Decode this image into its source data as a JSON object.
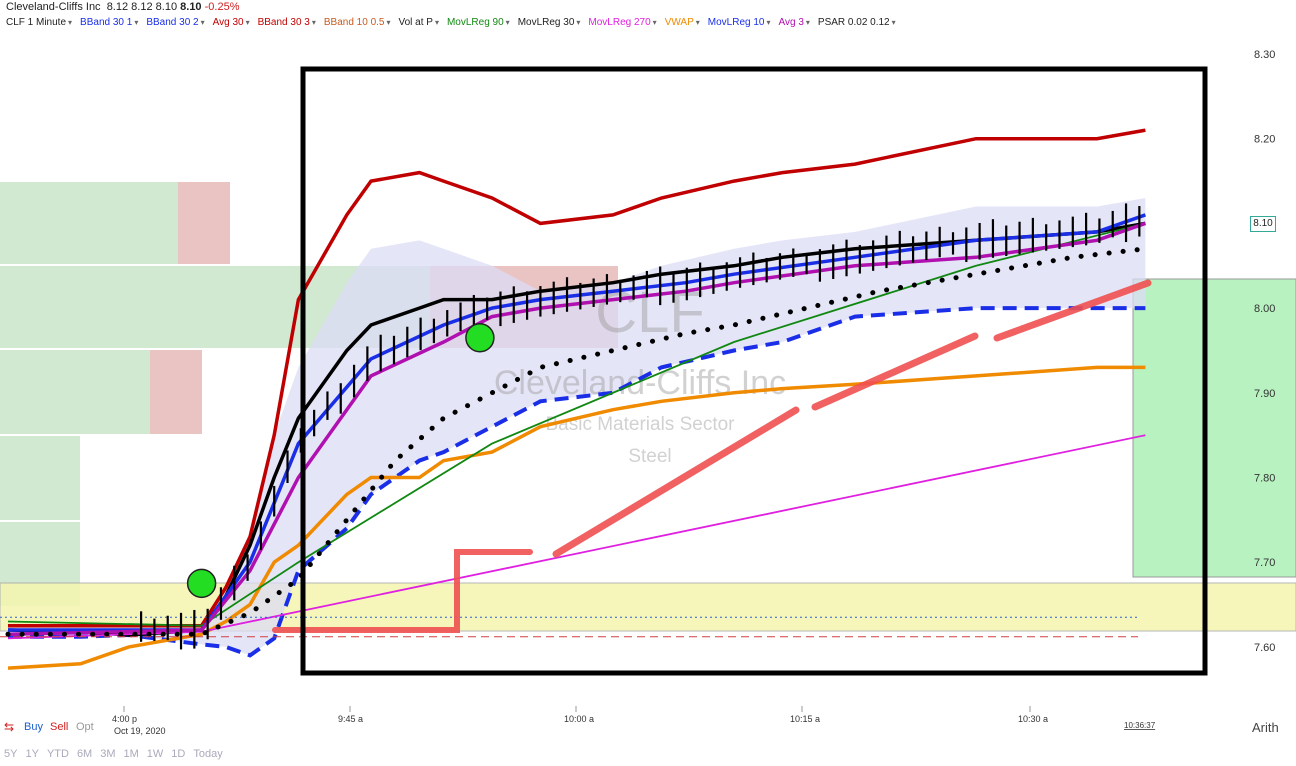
{
  "header": {
    "company": "Cleveland-Cliffs Inc",
    "open": "8.12",
    "high": "8.12",
    "low": "8.10",
    "last": "8.10",
    "change": "-0.25%",
    "indicators": [
      {
        "label": "CLF 1 Minute",
        "color": "#222222"
      },
      {
        "label": "BBand 30 1",
        "color": "#1a2ee8"
      },
      {
        "label": "BBand 30 2",
        "color": "#1a2ee8"
      },
      {
        "label": "Avg 30",
        "color": "#c00000"
      },
      {
        "label": "BBand 30 3",
        "color": "#c00000"
      },
      {
        "label": "BBand 10 0.5",
        "color": "#c85a1e"
      },
      {
        "label": "Vol at P",
        "color": "#222222"
      },
      {
        "label": "MovLReg 90",
        "color": "#118811"
      },
      {
        "label": "MovLReg 30",
        "color": "#222222"
      },
      {
        "label": "MovLReg 270",
        "color": "#e020e0"
      },
      {
        "label": "VWAP",
        "color": "#f08a00"
      },
      {
        "label": "MovLReg 10",
        "color": "#1a2ee8"
      },
      {
        "label": "Avg 3",
        "color": "#b010b0"
      },
      {
        "label": "PSAR 0.02 0.12",
        "color": "#222222"
      }
    ]
  },
  "watermark": {
    "symbol": "CLF",
    "name": "Cleveland-Cliffs Inc",
    "sector": "Basic Materials Sector",
    "industry": "Steel"
  },
  "chart_data": {
    "type": "line",
    "ylim": [
      7.54,
      8.32
    ],
    "y_ticks": [
      "8.30",
      "8.20",
      "8.10",
      "8.00",
      "7.90",
      "7.80",
      "7.70",
      "7.60"
    ],
    "x_ticks": [
      "4:00 p",
      "9:45 a",
      "10:00 a",
      "10:15 a",
      "10:30 a"
    ],
    "date_label": "Oct 19, 2020",
    "time_label": "10:36:37",
    "last_price": "8.10",
    "scale": "Arith",
    "series": [
      {
        "name": "BBand 30 3",
        "color": "#c00000",
        "style": "solid-thick",
        "x": [
          0,
          3,
          5,
          8,
          9,
          10,
          11,
          12,
          14,
          15,
          17,
          18,
          20,
          22,
          25,
          27,
          30,
          32,
          35,
          40,
          45,
          47
        ],
        "y": [
          7.625,
          7.625,
          7.625,
          7.625,
          7.67,
          7.73,
          7.85,
          8.01,
          8.11,
          8.15,
          8.16,
          8.15,
          8.13,
          8.1,
          8.11,
          8.13,
          8.15,
          8.16,
          8.17,
          8.2,
          8.2,
          8.21
        ]
      },
      {
        "name": "BBand 30 2",
        "color": "#1a2ee8",
        "style": "dashed-thick",
        "x": [
          0,
          3,
          5,
          8,
          9,
          10,
          11,
          12,
          14,
          15,
          17,
          18,
          20,
          22,
          25,
          27,
          30,
          32,
          35,
          40,
          45,
          47
        ],
        "y": [
          7.612,
          7.612,
          7.614,
          7.603,
          7.6,
          7.59,
          7.61,
          7.69,
          7.74,
          7.78,
          7.82,
          7.83,
          7.86,
          7.89,
          7.9,
          7.93,
          7.95,
          7.96,
          7.99,
          8.0,
          8.0,
          8.0
        ]
      },
      {
        "name": "MovLReg 30",
        "color": "#000000",
        "style": "solid-thick",
        "x": [
          0,
          3,
          5,
          8,
          9,
          10,
          11,
          12,
          14,
          15,
          17,
          18,
          20,
          22,
          25,
          27,
          30,
          32,
          35,
          40,
          45,
          47
        ],
        "y": [
          7.62,
          7.618,
          7.614,
          7.62,
          7.66,
          7.72,
          7.8,
          7.87,
          7.95,
          7.98,
          8.0,
          8.01,
          8.01,
          8.02,
          8.03,
          8.04,
          8.05,
          8.06,
          8.07,
          8.08,
          8.09,
          8.1
        ]
      },
      {
        "name": "VWAP",
        "color": "#f08a00",
        "style": "solid-thick",
        "x": [
          0,
          3,
          5,
          8,
          9,
          10,
          11,
          12,
          14,
          15,
          17,
          18,
          20,
          22,
          25,
          27,
          30,
          32,
          35,
          40,
          45,
          47
        ],
        "y": [
          7.575,
          7.58,
          7.6,
          7.615,
          7.63,
          7.65,
          7.7,
          7.72,
          7.78,
          7.8,
          7.8,
          7.82,
          7.83,
          7.86,
          7.88,
          7.89,
          7.9,
          7.905,
          7.91,
          7.92,
          7.93,
          7.93
        ]
      },
      {
        "name": "MovLReg 270",
        "color": "#e020e0",
        "style": "solid-thin",
        "x": [
          0,
          8,
          47
        ],
        "y": [
          7.61,
          7.618,
          7.85
        ]
      },
      {
        "name": "MovLReg 90",
        "color": "#118811",
        "style": "solid-thin",
        "x": [
          0,
          8,
          12,
          20,
          30,
          40,
          47
        ],
        "y": [
          7.63,
          7.625,
          7.7,
          7.84,
          7.96,
          8.05,
          8.1
        ]
      },
      {
        "name": "MovLReg 10",
        "color": "#1a2ee8",
        "style": "solid-thick",
        "x": [
          0,
          8,
          10,
          12,
          15,
          18,
          20,
          22,
          25,
          28,
          30,
          35,
          40,
          45,
          47
        ],
        "y": [
          7.62,
          7.62,
          7.7,
          7.84,
          7.94,
          7.98,
          8.0,
          8.01,
          8.02,
          8.03,
          8.04,
          8.06,
          8.08,
          8.09,
          8.11
        ]
      },
      {
        "name": "Avg 3",
        "color": "#b010b0",
        "style": "solid-thick",
        "x": [
          0,
          8,
          10,
          12,
          15,
          18,
          20,
          22,
          25,
          28,
          30,
          35,
          40,
          45,
          47
        ],
        "y": [
          7.615,
          7.62,
          7.69,
          7.8,
          7.92,
          7.96,
          7.99,
          8.0,
          8.01,
          8.02,
          8.03,
          8.05,
          8.06,
          8.08,
          8.1
        ]
      },
      {
        "name": "PSAR 0.02 0.12",
        "color": "#000000",
        "style": "dotted",
        "x": [
          0,
          8,
          10,
          12,
          14,
          16,
          18,
          20,
          22,
          25,
          28,
          30,
          33,
          36,
          40,
          44,
          47
        ],
        "y": [
          7.615,
          7.615,
          7.64,
          7.68,
          7.75,
          7.82,
          7.87,
          7.9,
          7.93,
          7.95,
          7.97,
          7.98,
          8.0,
          8.02,
          8.04,
          8.06,
          8.07
        ]
      }
    ],
    "levels": [
      {
        "price": 7.635,
        "color": "#3060d0",
        "style": "dotted"
      },
      {
        "price": 7.612,
        "color": "#d04040",
        "style": "dashed"
      }
    ],
    "markers": [
      {
        "type": "circle",
        "color": "#22dd22",
        "x": 8,
        "y": 7.675
      },
      {
        "type": "circle",
        "color": "#22dd22",
        "x": 19.5,
        "y": 7.965
      }
    ]
  },
  "bottom": {
    "buy": "Buy",
    "sell": "Sell",
    "opt": "Opt",
    "arith": "Arith",
    "ranges": [
      "5Y",
      "1Y",
      "YTD",
      "6M",
      "3M",
      "1M",
      "1W",
      "1D",
      "Today"
    ]
  }
}
